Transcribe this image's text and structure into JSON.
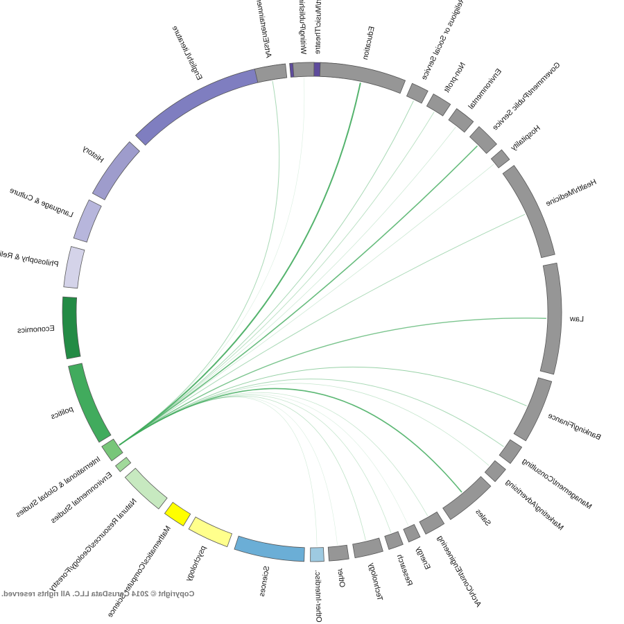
{
  "copyright": "Copyright © 2014 CerusData LLC.  All rights reserved.",
  "chart_data": {
    "type": "chord",
    "source": "International & Global Studies",
    "segments": [
      {
        "label": "Art/Music/Theatre",
        "color": "#5e4b9c",
        "start": -0.135,
        "end": 0.09
      },
      {
        "label": "English/Literature",
        "color": "#7f7ec0",
        "start": 0.115,
        "end": 0.785
      },
      {
        "label": "History",
        "color": "#9e9ccc",
        "start": 0.82,
        "end": 1.075
      },
      {
        "label": "Language & Culture",
        "color": "#b7b6dc",
        "start": 1.105,
        "end": 1.27
      },
      {
        "label": "Philosophy & Religion",
        "color": "#d4d3e9",
        "start": 1.305,
        "end": 1.47
      },
      {
        "label": "Economics",
        "color": "#238b45",
        "start": 1.51,
        "end": 1.76
      },
      {
        "label": "politics",
        "color": "#41ab5d",
        "start": 1.79,
        "end": 2.12
      },
      {
        "label": "International & Global Studies",
        "color": "#78c679",
        "start": 2.14,
        "end": 2.21
      },
      {
        "label": "Environmental Studies",
        "color": "#a1d99b",
        "start": 2.235,
        "end": 2.265
      },
      {
        "label": "Natural Resources/Geology/Forestry",
        "color": "#c7e9c0",
        "start": 2.295,
        "end": 2.48
      },
      {
        "label": "Mathematics/Computer Science",
        "color": "#ffff00",
        "start": 2.51,
        "end": 2.6
      },
      {
        "label": "psychology",
        "color": "#ffff8c",
        "start": 2.625,
        "end": 2.795
      },
      {
        "label": "Sciences",
        "color": "#6baed6",
        "start": 2.825,
        "end": 3.11
      },
      {
        "label": "Other-Interdisc.",
        "color": "#9ecae1",
        "start": 3.135,
        "end": 3.19
      },
      {
        "label": "Other",
        "color": "#969696",
        "start": 3.21,
        "end": 3.29
      },
      {
        "label": "Technology",
        "color": "#969696",
        "start": 3.315,
        "end": 3.43
      },
      {
        "label": "Research",
        "color": "#969696",
        "start": 3.455,
        "end": 3.515
      },
      {
        "label": "Energy",
        "color": "#969696",
        "start": 3.54,
        "end": 3.59
      },
      {
        "label": "Arch/Const/Engineering",
        "color": "#969696",
        "start": 3.615,
        "end": 3.7
      },
      {
        "label": "Sales",
        "color": "#969696",
        "start": 3.73,
        "end": 3.94
      },
      {
        "label": "Marketing/Advertising",
        "color": "#969696",
        "start": 3.965,
        "end": 4.03
      },
      {
        "label": "Management/Consulting",
        "color": "#969696",
        "start": 4.06,
        "end": 4.14
      },
      {
        "label": "Banking/Finance",
        "color": "#969696",
        "start": 4.17,
        "end": 4.43
      },
      {
        "label": "Law",
        "color": "#969696",
        "start": 4.46,
        "end": 4.91
      },
      {
        "label": "Health/Medicine",
        "color": "#969696",
        "start": 4.945,
        "end": 5.34
      },
      {
        "label": "Hospitality",
        "color": "#969696",
        "start": 5.37,
        "end": 5.42
      },
      {
        "label": "Government/Public Service",
        "color": "#969696",
        "start": 5.45,
        "end": 5.55
      },
      {
        "label": "Environmental",
        "color": "#969696",
        "start": 5.58,
        "end": 5.665
      },
      {
        "label": "Non-profit",
        "color": "#969696",
        "start": 5.695,
        "end": 5.775
      },
      {
        "label": "Religious or Social Service",
        "color": "#969696",
        "start": 5.8,
        "end": 5.87
      },
      {
        "label": "Education",
        "color": "#969696",
        "start": 5.9,
        "end": 6.25
      },
      {
        "label": "Writing/Publishing",
        "color": "#969696",
        "start": 6.275,
        "end": 6.36
      },
      {
        "label": "Arts/Entertainment",
        "color": "#969696",
        "start": 6.39,
        "end": 6.515
      }
    ],
    "ribbons": [
      {
        "target": "Arts/Entertainment",
        "weight": 1,
        "opacity": 0.45
      },
      {
        "target": "Writing/Publishing",
        "weight": 0.6,
        "opacity": 0.2
      },
      {
        "target": "Education",
        "weight": 2,
        "opacity": 0.9
      },
      {
        "target": "Religious or Social Service",
        "weight": 1,
        "opacity": 0.45
      },
      {
        "target": "Non-profit",
        "weight": 1,
        "opacity": 0.35
      },
      {
        "target": "Environmental",
        "weight": 0.8,
        "opacity": 0.25
      },
      {
        "target": "Government/Public Service",
        "weight": 1.6,
        "opacity": 0.8
      },
      {
        "target": "Hospitality",
        "weight": 0.8,
        "opacity": 0.25
      },
      {
        "target": "Health/Medicine",
        "weight": 1,
        "opacity": 0.45
      },
      {
        "target": "Law",
        "weight": 1.4,
        "opacity": 0.7
      },
      {
        "target": "Banking/Finance",
        "weight": 1,
        "opacity": 0.55
      },
      {
        "target": "Management/Consulting",
        "weight": 1,
        "opacity": 0.45
      },
      {
        "target": "Marketing/Advertising",
        "weight": 0.8,
        "opacity": 0.3
      },
      {
        "target": "Sales",
        "weight": 1.6,
        "opacity": 0.85
      },
      {
        "target": "Arch/Const/Engineering",
        "weight": 0.8,
        "opacity": 0.3
      },
      {
        "target": "Energy",
        "weight": 0.6,
        "opacity": 0.2
      },
      {
        "target": "Research",
        "weight": 0.8,
        "opacity": 0.3
      },
      {
        "target": "Technology",
        "weight": 0.8,
        "opacity": 0.35
      },
      {
        "target": "Other",
        "weight": 0.6,
        "opacity": 0.2
      },
      {
        "target": "Other-Interdisc.",
        "weight": 0.6,
        "opacity": 0.25
      }
    ]
  }
}
